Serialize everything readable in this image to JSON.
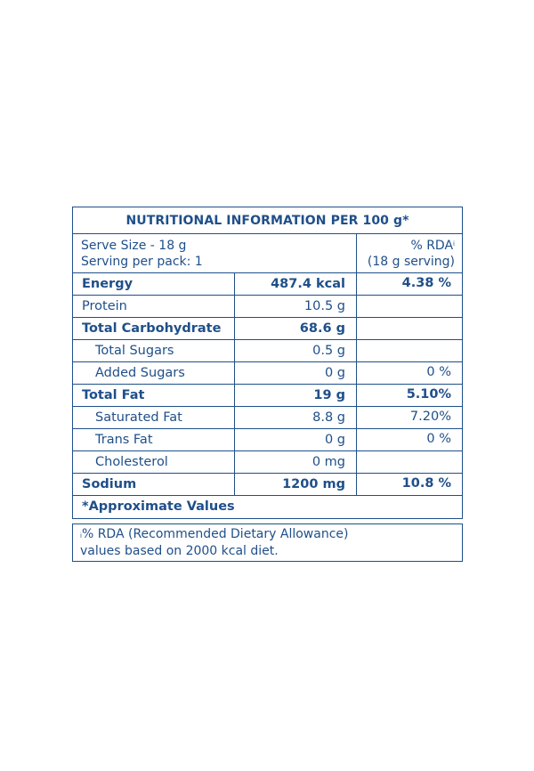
{
  "title": "NUTRITIONAL INFORMATION PER 100 g*",
  "serve": {
    "size": "Serve Size - 18 g",
    "per_pack": "Serving per pack: 1",
    "rda_header": "% RDA",
    "rda_mark": "i",
    "rda_serving": "(18 g serving)"
  },
  "rows": [
    {
      "name": "Energy",
      "amount": "487.4 kcal",
      "rda": "4.38 %"
    },
    {
      "name": "Protein",
      "amount": "10.5 g",
      "rda": ""
    },
    {
      "name": "Total Carbohydrate",
      "amount": "68.6 g",
      "rda": ""
    },
    {
      "name": "Total Sugars",
      "amount": "0.5 g",
      "rda": ""
    },
    {
      "name": "Added Sugars",
      "amount": "0 g",
      "rda": "0 %"
    },
    {
      "name": "Total Fat",
      "amount": "19 g",
      "rda": "5.10%"
    },
    {
      "name": "Saturated Fat",
      "amount": "8.8 g",
      "rda": "7.20%"
    },
    {
      "name": "Trans Fat",
      "amount": "0 g",
      "rda": "0 %"
    },
    {
      "name": "Cholesterol",
      "amount": "0 mg",
      "rda": ""
    },
    {
      "name": "Sodium",
      "amount": "1200 mg",
      "rda": "10.8 %"
    }
  ],
  "approx_note": "*Approximate Values",
  "footnote": {
    "mark": "i",
    "line1": "% RDA (Recommended Dietary Allowance)",
    "line2": "values based on 2000 kcal diet."
  },
  "colors": {
    "ink": "#1f4f8a",
    "background": "#ffffff"
  }
}
